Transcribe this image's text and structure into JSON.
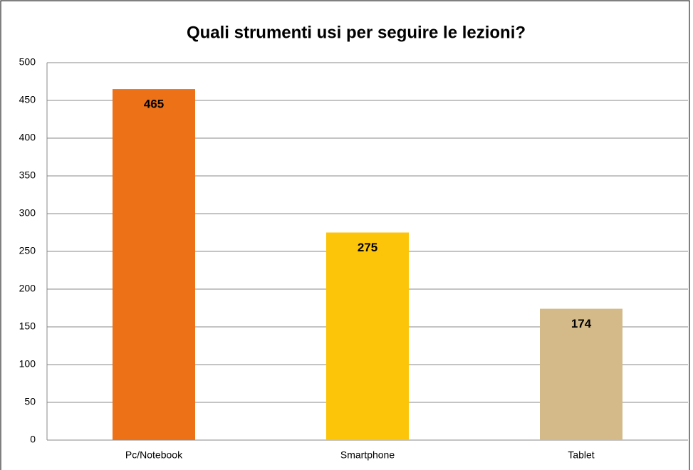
{
  "chart_data": {
    "type": "bar",
    "title": "Quali strumenti usi per seguire le lezioni?",
    "categories": [
      "Pc/Notebook",
      "Smartphone",
      "Tablet"
    ],
    "values": [
      465,
      275,
      174
    ],
    "colors": [
      "#ed7117",
      "#fcc50a",
      "#d4b989"
    ],
    "ylim": [
      0,
      500
    ],
    "yticks": [
      0,
      50,
      100,
      150,
      200,
      250,
      300,
      350,
      400,
      450,
      500
    ],
    "grid": true
  }
}
